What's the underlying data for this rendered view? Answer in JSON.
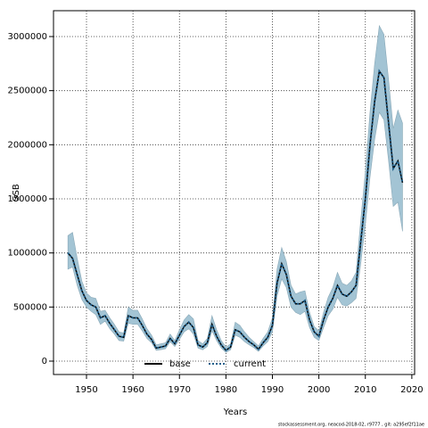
{
  "chart_data": {
    "type": "line",
    "xlabel": "Years",
    "ylabel": "SSB",
    "footnote": "stockassessment.org, neacod-2018-02, r9777 , git: a295ef2f11ae",
    "x": [
      1946,
      1947,
      1948,
      1949,
      1950,
      1951,
      1952,
      1953,
      1954,
      1955,
      1956,
      1957,
      1958,
      1959,
      1960,
      1961,
      1962,
      1963,
      1964,
      1965,
      1966,
      1967,
      1968,
      1969,
      1970,
      1971,
      1972,
      1973,
      1974,
      1975,
      1976,
      1977,
      1978,
      1979,
      1980,
      1981,
      1982,
      1983,
      1984,
      1985,
      1986,
      1987,
      1988,
      1989,
      1990,
      1991,
      1992,
      1993,
      1994,
      1995,
      1996,
      1997,
      1998,
      1999,
      2000,
      2001,
      2002,
      2003,
      2004,
      2005,
      2006,
      2007,
      2008,
      2009,
      2010,
      2011,
      2012,
      2013,
      2014,
      2015,
      2016,
      2017,
      2018
    ],
    "series": [
      {
        "name": "base",
        "color": "#000000",
        "linestyle": "solid",
        "values": [
          1000000,
          950000,
          800000,
          650000,
          560000,
          520000,
          500000,
          400000,
          420000,
          350000,
          290000,
          230000,
          220000,
          420000,
          400000,
          400000,
          330000,
          250000,
          200000,
          120000,
          130000,
          140000,
          210000,
          160000,
          240000,
          320000,
          360000,
          310000,
          150000,
          130000,
          170000,
          340000,
          230000,
          150000,
          100000,
          130000,
          290000,
          270000,
          220000,
          180000,
          150000,
          110000,
          170000,
          220000,
          330000,
          720000,
          900000,
          800000,
          600000,
          530000,
          530000,
          560000,
          380000,
          270000,
          230000,
          380000,
          500000,
          580000,
          700000,
          620000,
          600000,
          640000,
          700000,
          1100000,
          1500000,
          2000000,
          2400000,
          2680000,
          2620000,
          2200000,
          1780000,
          1850000,
          1650000
        ]
      },
      {
        "name": "current",
        "color": "#1f5f8b",
        "linestyle": "dotted",
        "values": [
          1000000,
          950000,
          800000,
          650000,
          560000,
          520000,
          500000,
          400000,
          420000,
          350000,
          290000,
          230000,
          220000,
          420000,
          400000,
          400000,
          330000,
          250000,
          200000,
          120000,
          130000,
          140000,
          210000,
          160000,
          240000,
          320000,
          360000,
          310000,
          150000,
          130000,
          170000,
          340000,
          230000,
          150000,
          100000,
          130000,
          290000,
          270000,
          220000,
          180000,
          150000,
          110000,
          170000,
          220000,
          330000,
          720000,
          900000,
          800000,
          600000,
          530000,
          530000,
          560000,
          380000,
          270000,
          230000,
          380000,
          500000,
          580000,
          700000,
          620000,
          600000,
          640000,
          700000,
          1100000,
          1500000,
          2000000,
          2400000,
          2680000,
          2620000,
          2200000,
          1780000,
          1850000,
          1650000
        ]
      }
    ],
    "band": {
      "color": "#a3c4d4",
      "upper": [
        1160000,
        1190000,
        950000,
        740000,
        630000,
        590000,
        580000,
        460000,
        470000,
        400000,
        340000,
        270000,
        260000,
        500000,
        470000,
        470000,
        390000,
        300000,
        240000,
        150000,
        160000,
        170000,
        250000,
        190000,
        290000,
        380000,
        430000,
        390000,
        190000,
        160000,
        210000,
        420000,
        290000,
        190000,
        130000,
        160000,
        360000,
        330000,
        270000,
        220000,
        180000,
        140000,
        210000,
        270000,
        400000,
        850000,
        1050000,
        920000,
        700000,
        620000,
        640000,
        650000,
        450000,
        320000,
        280000,
        450000,
        590000,
        680000,
        820000,
        720000,
        700000,
        740000,
        820000,
        1300000,
        1750000,
        2300000,
        2750000,
        3100000,
        3020000,
        2600000,
        2150000,
        2320000,
        2200000
      ],
      "lower": [
        850000,
        870000,
        700000,
        570000,
        500000,
        460000,
        430000,
        340000,
        370000,
        300000,
        250000,
        190000,
        185000,
        350000,
        340000,
        340000,
        280000,
        210000,
        170000,
        100000,
        105000,
        115000,
        180000,
        135000,
        200000,
        270000,
        300000,
        250000,
        120000,
        105000,
        135000,
        280000,
        190000,
        120000,
        80000,
        105000,
        240000,
        220000,
        180000,
        150000,
        125000,
        90000,
        140000,
        180000,
        270000,
        600000,
        760000,
        680000,
        500000,
        450000,
        430000,
        460000,
        310000,
        220000,
        190000,
        310000,
        420000,
        480000,
        590000,
        520000,
        510000,
        540000,
        580000,
        900000,
        1260000,
        1700000,
        2050000,
        2300000,
        2230000,
        1850000,
        1430000,
        1470000,
        1200000
      ]
    },
    "xlim": [
      1942.9,
      2020.6
    ],
    "ylim": [
      -123600,
      3239000
    ],
    "xticks": [
      1950,
      1960,
      1970,
      1980,
      1990,
      2000,
      2010,
      2020
    ],
    "yticks": [
      0,
      500000,
      1000000,
      1500000,
      2000000,
      2500000,
      3000000
    ],
    "grid": true,
    "legend": "bottom"
  }
}
